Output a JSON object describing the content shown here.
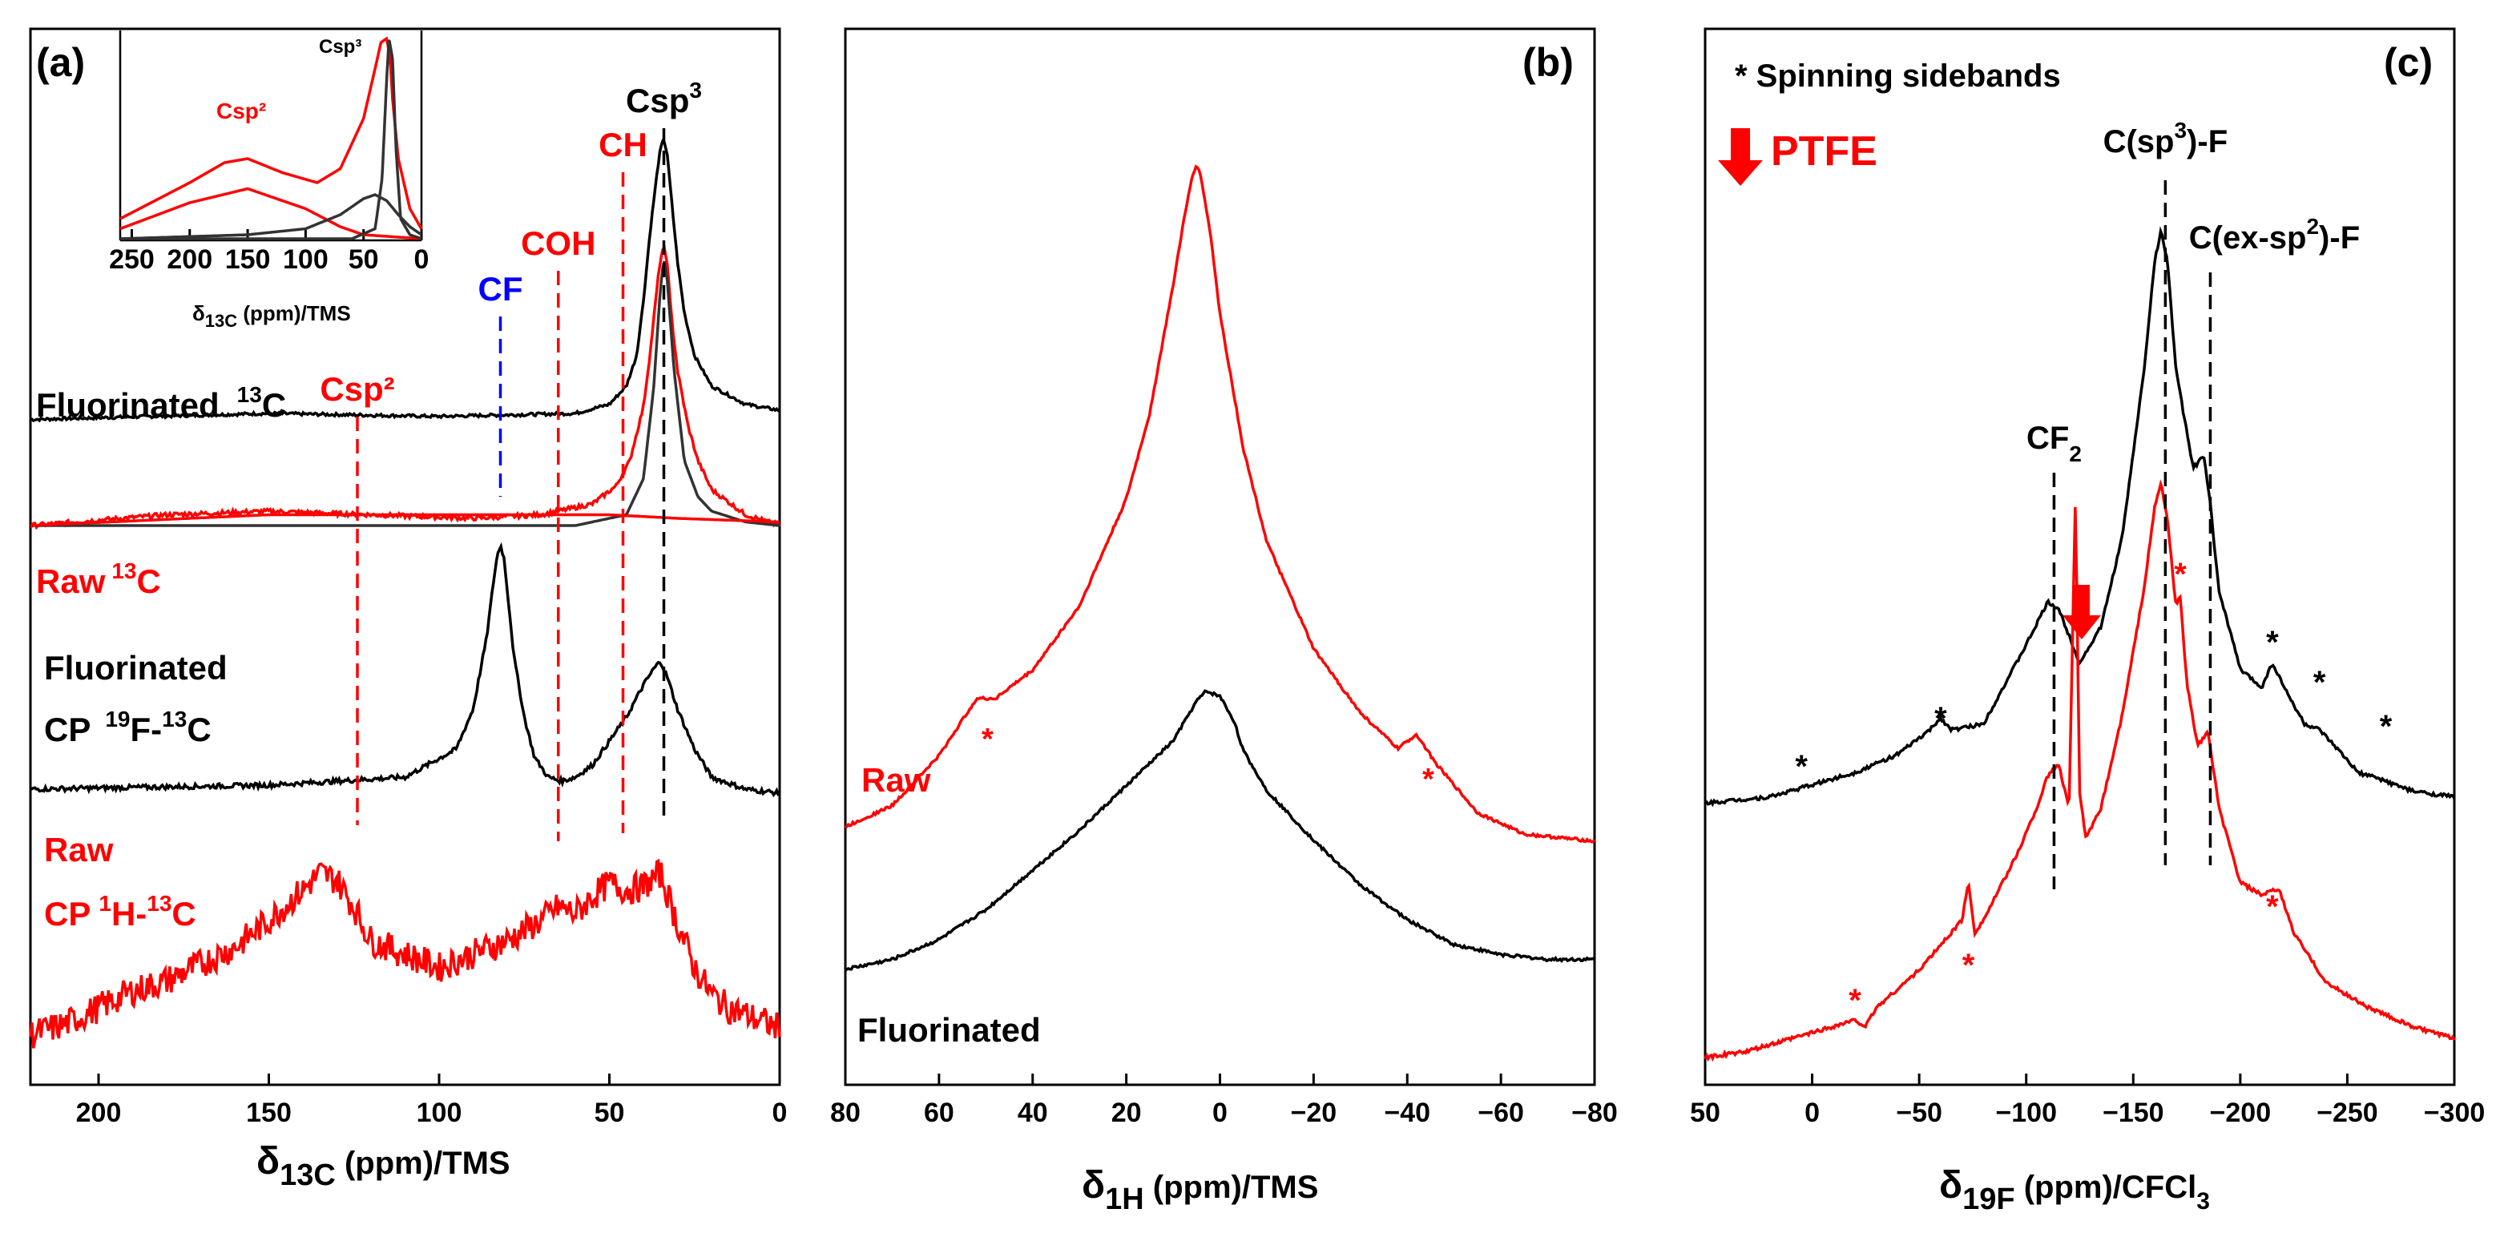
{
  "chart_data": [
    {
      "panel": "(a)",
      "type": "line",
      "xlim": [
        220,
        0
      ],
      "xticks": [
        200,
        150,
        100,
        50,
        0
      ],
      "xlabel_main": "δ",
      "xlabel_sub": "13C",
      "xlabel_rest": " (ppm)/TMS",
      "series": [
        {
          "name": "Fluorinated 13C",
          "color": "#000000",
          "x": [
            220,
            150,
            100,
            60,
            50,
            45,
            42,
            40,
            38,
            36,
            35,
            34,
            33,
            32,
            30,
            28,
            25,
            20,
            10,
            0
          ],
          "y": [
            0.03,
            0.05,
            0.04,
            0.05,
            0.08,
            0.14,
            0.24,
            0.42,
            0.65,
            0.84,
            0.92,
            0.95,
            0.9,
            0.78,
            0.55,
            0.38,
            0.24,
            0.14,
            0.08,
            0.06
          ]
        },
        {
          "name": "Raw 13C",
          "color": "#ff0000",
          "x": [
            220,
            180,
            150,
            120,
            90,
            70,
            55,
            48,
            44,
            40,
            38,
            36,
            35,
            34,
            33,
            32,
            30,
            27,
            24,
            20,
            10,
            0
          ],
          "y": [
            0.02,
            0.05,
            0.06,
            0.05,
            0.04,
            0.05,
            0.08,
            0.13,
            0.2,
            0.35,
            0.5,
            0.68,
            0.76,
            0.79,
            0.75,
            0.62,
            0.45,
            0.3,
            0.2,
            0.12,
            0.05,
            0.02
          ]
        },
        {
          "name": "Fluorinated CP 19F-13C",
          "color": "#000000",
          "x": [
            220,
            150,
            110,
            95,
            90,
            86,
            84,
            83,
            82,
            81,
            80,
            78,
            75,
            72,
            68,
            64,
            60,
            55,
            50,
            45,
            40,
            37,
            35,
            33,
            30,
            25,
            20,
            10,
            0
          ],
          "y": [
            0.02,
            0.03,
            0.05,
            0.12,
            0.22,
            0.4,
            0.54,
            0.6,
            0.63,
            0.6,
            0.52,
            0.35,
            0.2,
            0.1,
            0.05,
            0.04,
            0.05,
            0.08,
            0.14,
            0.2,
            0.28,
            0.32,
            0.34,
            0.3,
            0.22,
            0.12,
            0.05,
            0.02,
            0.01
          ]
        },
        {
          "name": "Raw CP 1H-13C",
          "color": "#ff0000",
          "x": [
            220,
            210,
            200,
            190,
            180,
            170,
            160,
            150,
            140,
            135,
            130,
            125,
            120,
            110,
            100,
            90,
            80,
            70,
            65,
            60,
            55,
            50,
            45,
            40,
            35,
            30,
            25,
            20,
            15,
            10,
            5,
            0
          ],
          "y": [
            0.02,
            0.05,
            0.1,
            0.15,
            0.18,
            0.23,
            0.28,
            0.36,
            0.45,
            0.5,
            0.48,
            0.4,
            0.3,
            0.26,
            0.22,
            0.26,
            0.3,
            0.36,
            0.4,
            0.38,
            0.43,
            0.47,
            0.45,
            0.46,
            0.5,
            0.35,
            0.22,
            0.14,
            0.1,
            0.08,
            0.06,
            0.04
          ]
        }
      ],
      "markers": [
        {
          "label": "Csp²",
          "x": 124,
          "color": "#ff0000"
        },
        {
          "label": "CF",
          "x": 82,
          "color": "#0000ff"
        },
        {
          "label": "COH",
          "x": 65,
          "color": "#ff0000"
        },
        {
          "label": "CH",
          "x": 46,
          "color": "#ff0000"
        },
        {
          "label_main": "Csp",
          "label_sup": "3",
          "x": 34,
          "color": "#000000"
        }
      ],
      "labels": [
        {
          "line1": "Fluorinated",
          "sup": "13",
          "rest": "C",
          "color": "#000000"
        },
        {
          "line1": "Raw",
          "sup": "13",
          "rest": "C",
          "color": "#ff0000"
        },
        {
          "line1": "Fluorinated",
          "line2_pre": "CP",
          "sup": "19",
          "line2_rest": "F-",
          "sup2": "13",
          "line2_end": "C",
          "color": "#000000"
        },
        {
          "line1": "Raw",
          "line2_pre": "CP",
          "sup": "1",
          "line2_rest": "H-",
          "sup2": "13",
          "line2_end": "C",
          "color": "#ff0000"
        }
      ],
      "inset": {
        "xlim": [
          260,
          0
        ],
        "xticks": [
          250,
          200,
          150,
          100,
          50,
          0
        ],
        "xlabel_main": "δ",
        "xlabel_sub": "13C",
        "xlabel_rest": " (ppm)/TMS",
        "label_csp2": "Csp²",
        "label_csp3": "Csp³"
      }
    },
    {
      "panel": "(b)",
      "type": "line",
      "xlim": [
        80,
        -80
      ],
      "xticks": [
        80,
        60,
        40,
        20,
        0,
        -20,
        -40,
        -60,
        -80
      ],
      "xlabel_main": "δ",
      "xlabel_sub": "1H",
      "xlabel_rest": " (ppm)/TMS",
      "series": [
        {
          "name": "Raw",
          "color": "#ff0000",
          "x": [
            80,
            70,
            60,
            55,
            52,
            48,
            40,
            30,
            20,
            15,
            10,
            8,
            6,
            5,
            4,
            2,
            0,
            -5,
            -10,
            -20,
            -30,
            -38,
            -42,
            -46,
            -55,
            -65,
            -80
          ],
          "y": [
            0.02,
            0.05,
            0.12,
            0.17,
            0.2,
            0.2,
            0.24,
            0.33,
            0.48,
            0.6,
            0.78,
            0.86,
            0.93,
            0.95,
            0.93,
            0.85,
            0.74,
            0.55,
            0.42,
            0.27,
            0.18,
            0.13,
            0.15,
            0.11,
            0.04,
            0.01,
            0.0
          ]
        },
        {
          "name": "Fluorinated",
          "color": "#000000",
          "x": [
            80,
            70,
            60,
            50,
            40,
            30,
            20,
            10,
            5,
            3,
            0,
            -3,
            -5,
            -10,
            -20,
            -30,
            -40,
            -50,
            -60,
            -70,
            -80
          ],
          "y": [
            0.0,
            0.02,
            0.06,
            0.12,
            0.2,
            0.28,
            0.37,
            0.46,
            0.54,
            0.56,
            0.55,
            0.5,
            0.44,
            0.36,
            0.26,
            0.17,
            0.1,
            0.05,
            0.03,
            0.02,
            0.02
          ]
        }
      ],
      "labels": [
        "Raw",
        "Fluorinated"
      ],
      "annotations": [
        "*",
        "*"
      ]
    },
    {
      "panel": "(c)",
      "type": "line",
      "xlim": [
        50,
        -300
      ],
      "xticks": [
        50,
        0,
        -50,
        -100,
        -150,
        -200,
        -250,
        -300
      ],
      "xlabel_main": "δ",
      "xlabel_sub": "19F",
      "xlabel_rest": " (ppm)/CFCl",
      "xlabel_sub2": "3",
      "series": [
        {
          "name": "Fluorinated",
          "color": "#000000",
          "x": [
            50,
            20,
            0,
            -20,
            -40,
            -55,
            -60,
            -65,
            -80,
            -100,
            -110,
            -115,
            -125,
            -135,
            -145,
            -155,
            -160,
            -163,
            -166,
            -170,
            -178,
            -183,
            -186,
            -190,
            -200,
            -210,
            -215,
            -222,
            -230,
            -237,
            -245,
            -255,
            -265,
            -280,
            -300
          ],
          "y": [
            0.01,
            0.02,
            0.04,
            0.06,
            0.09,
            0.13,
            0.15,
            0.13,
            0.14,
            0.27,
            0.34,
            0.33,
            0.24,
            0.3,
            0.45,
            0.72,
            0.9,
            0.95,
            0.9,
            0.72,
            0.56,
            0.58,
            0.5,
            0.36,
            0.23,
            0.2,
            0.24,
            0.19,
            0.14,
            0.13,
            0.1,
            0.06,
            0.05,
            0.03,
            0.02
          ]
        },
        {
          "name": "Raw",
          "color": "#ff0000",
          "x": [
            50,
            30,
            20,
            10,
            0,
            -20,
            -25,
            -30,
            -50,
            -65,
            -70,
            -73,
            -76,
            -80,
            -95,
            -105,
            -110,
            -115,
            -120,
            -123,
            -125,
            -128,
            -135,
            -145,
            -155,
            -160,
            -163,
            -166,
            -170,
            -172,
            -175,
            -180,
            -185,
            -190,
            -200,
            -210,
            -218,
            -225,
            -240,
            -260,
            -280,
            -300
          ],
          "y": [
            0.0,
            0.01,
            0.02,
            0.03,
            0.04,
            0.06,
            0.05,
            0.08,
            0.14,
            0.2,
            0.22,
            0.28,
            0.2,
            0.22,
            0.32,
            0.4,
            0.45,
            0.47,
            0.4,
            0.9,
            0.42,
            0.35,
            0.4,
            0.55,
            0.75,
            0.88,
            0.92,
            0.86,
            0.72,
            0.74,
            0.6,
            0.5,
            0.52,
            0.4,
            0.28,
            0.26,
            0.27,
            0.2,
            0.12,
            0.08,
            0.05,
            0.03
          ]
        }
      ],
      "markers": [
        {
          "label_main": "CF",
          "label_sub": "2",
          "x": -113
        },
        {
          "label_main": "C(sp",
          "label_sup": "3",
          "label_rest": ")-F",
          "x": -165
        },
        {
          "label_main": "C(ex-sp",
          "label_sup": "2",
          "label_rest": ")-F",
          "x": -186
        }
      ],
      "legend_sidebands": "* Spinning sidebands",
      "legend_ptfe": "PTFE",
      "annotations": [
        "*",
        "*",
        "*",
        "*",
        "*",
        "*",
        "*",
        "*",
        "*",
        "*"
      ]
    }
  ]
}
